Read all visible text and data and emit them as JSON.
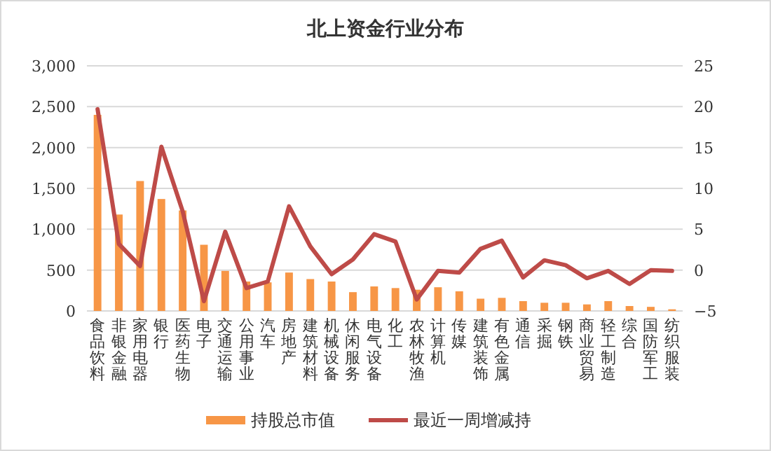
{
  "chart_data": {
    "type": "bar",
    "title": "北上资金行业分布",
    "categories": [
      "食品饮料",
      "非银金融",
      "家用电器",
      "银行",
      "医药生物",
      "电子",
      "交通运输",
      "公用事业",
      "汽车",
      "房地产",
      "建筑材料",
      "机械设备",
      "休闲服务",
      "电气设备",
      "化工",
      "农林牧渔",
      "计算机",
      "传媒",
      "建筑装饰",
      "有色金属",
      "通信",
      "采掘",
      "钢铁",
      "商业贸易",
      "轻工制造",
      "综合",
      "国防军工",
      "纺织服装"
    ],
    "series": [
      {
        "name": "持股总市值",
        "color": "#f79646",
        "values": [
          2400,
          1180,
          1590,
          1370,
          1230,
          810,
          490,
          360,
          350,
          470,
          390,
          360,
          230,
          300,
          280,
          260,
          290,
          240,
          150,
          160,
          120,
          100,
          100,
          80,
          120,
          60,
          50,
          20
        ]
      },
      {
        "name": "最近一周增减持",
        "type": "line",
        "axis": "y2",
        "color": "#be4b48",
        "values": [
          19.7,
          3.2,
          0.5,
          15.1,
          7.2,
          -3.8,
          4.7,
          -2.2,
          -1.4,
          7.8,
          2.9,
          -0.5,
          1.3,
          4.4,
          3.5,
          -3.6,
          -0.1,
          -0.3,
          2.6,
          3.6,
          -0.9,
          1.2,
          0.6,
          -1.0,
          -0.1,
          -1.7,
          0,
          -0.1
        ]
      }
    ],
    "ylim": [
      0,
      3000
    ],
    "yticks": [
      0,
      {
        "value": 500,
        "label": "500"
      },
      {
        "value": 1000,
        "label": "1,000"
      },
      {
        "value": 1500,
        "label": "1,500"
      },
      {
        "value": 2000,
        "label": "2,000"
      },
      {
        "value": 2500,
        "label": "2,500"
      },
      {
        "value": 3000,
        "label": "3,000"
      }
    ],
    "y2lim": [
      -5,
      25
    ],
    "y2ticks": [
      -5,
      0,
      5,
      10,
      15,
      20,
      25
    ],
    "grid": "y",
    "legend": "bottom",
    "marker": "none",
    "line_style": "solid"
  }
}
